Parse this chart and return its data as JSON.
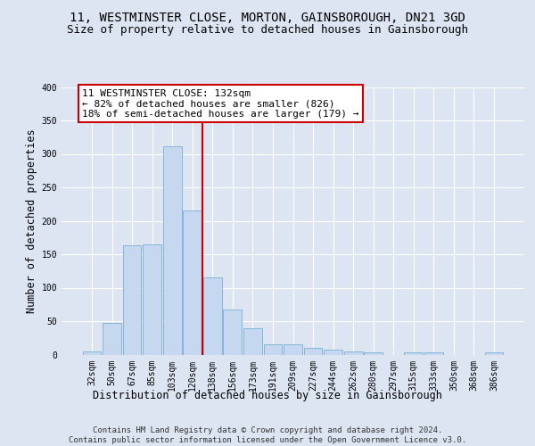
{
  "title": "11, WESTMINSTER CLOSE, MORTON, GAINSBOROUGH, DN21 3GD",
  "subtitle": "Size of property relative to detached houses in Gainsborough",
  "xlabel": "Distribution of detached houses by size in Gainsborough",
  "ylabel": "Number of detached properties",
  "bar_labels": [
    "32sqm",
    "50sqm",
    "67sqm",
    "85sqm",
    "103sqm",
    "120sqm",
    "138sqm",
    "156sqm",
    "173sqm",
    "191sqm",
    "209sqm",
    "227sqm",
    "244sqm",
    "262sqm",
    "280sqm",
    "297sqm",
    "315sqm",
    "333sqm",
    "350sqm",
    "368sqm",
    "386sqm"
  ],
  "bar_values": [
    5,
    47,
    164,
    165,
    311,
    215,
    115,
    67,
    39,
    16,
    16,
    10,
    7,
    5,
    4,
    0,
    4,
    3,
    0,
    0,
    4
  ],
  "bar_color": "#c5d8f0",
  "bar_edge_color": "#7aafd4",
  "property_line_color": "#cc0000",
  "property_line_x": 5.5,
  "annotation_line1": "11 WESTMINSTER CLOSE: 132sqm",
  "annotation_line2": "← 82% of detached houses are smaller (826)",
  "annotation_line3": "18% of semi-detached houses are larger (179) →",
  "ylim": [
    0,
    400
  ],
  "yticks": [
    0,
    50,
    100,
    150,
    200,
    250,
    300,
    350,
    400
  ],
  "footer_line1": "Contains HM Land Registry data © Crown copyright and database right 2024.",
  "footer_line2": "Contains public sector information licensed under the Open Government Licence v3.0.",
  "background_color": "#dde5f2",
  "grid_color": "#ffffff",
  "title_fontsize": 10,
  "subtitle_fontsize": 9,
  "axis_label_fontsize": 8.5,
  "tick_fontsize": 7,
  "annotation_fontsize": 8,
  "footer_fontsize": 6.5
}
